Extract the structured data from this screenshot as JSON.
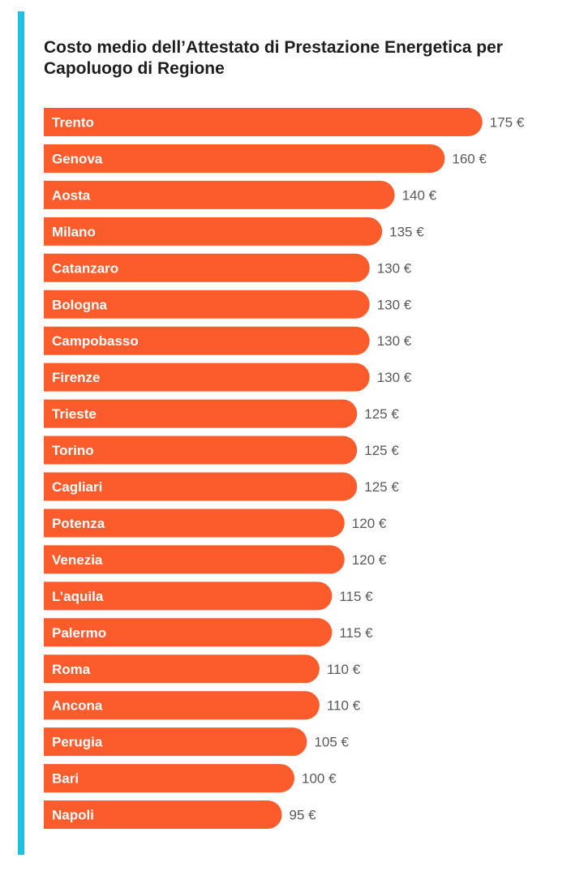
{
  "colors": {
    "accent": "#1ec1de",
    "bar": "#fc5b2b"
  },
  "chart_data": {
    "type": "bar",
    "orientation": "horizontal",
    "title": "Costo medio dell’Attestato di Prestazione Energetica per Capoluogo di Regione",
    "unit": "€",
    "categories": [
      "Trento",
      "Genova",
      "Aosta",
      "Milano",
      "Catanzaro",
      "Bologna",
      "Campobasso",
      "Firenze",
      "Trieste",
      "Torino",
      "Cagliari",
      "Potenza",
      "Venezia",
      "L’aquila",
      "Palermo",
      "Roma",
      "Ancona",
      "Perugia",
      "Bari",
      "Napoli"
    ],
    "values": [
      175,
      160,
      140,
      135,
      130,
      130,
      130,
      130,
      125,
      125,
      125,
      120,
      120,
      115,
      115,
      110,
      110,
      105,
      100,
      95
    ],
    "value_labels": [
      "175 €",
      "160 €",
      "140 €",
      "135 €",
      "130 €",
      "130 €",
      "130 €",
      "130 €",
      "125 €",
      "125 €",
      "125 €",
      "120 €",
      "120 €",
      "115 €",
      "115 €",
      "110 €",
      "110 €",
      "105 €",
      "100 €",
      "95 €"
    ],
    "grid": false,
    "legend": "none"
  }
}
